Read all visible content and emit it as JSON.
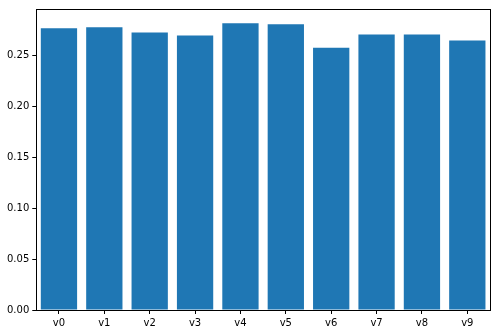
{
  "chart_data": {
    "type": "bar",
    "categories": [
      "v0",
      "v1",
      "v2",
      "v3",
      "v4",
      "v5",
      "v6",
      "v7",
      "v8",
      "v9"
    ],
    "values": [
      0.277,
      0.278,
      0.273,
      0.27,
      0.282,
      0.281,
      0.258,
      0.271,
      0.271,
      0.265
    ],
    "color": "#1f77b4",
    "ylim": [
      0,
      0.296
    ],
    "yticks": [
      {
        "value": 0,
        "label": "0.00"
      },
      {
        "value": 0.05,
        "label": "0.05"
      },
      {
        "value": 0.1,
        "label": "0.10"
      },
      {
        "value": 0.15,
        "label": "0.15"
      },
      {
        "value": 0.2,
        "label": "0.20"
      },
      {
        "value": 0.25,
        "label": "0.25"
      }
    ],
    "grid": false
  }
}
